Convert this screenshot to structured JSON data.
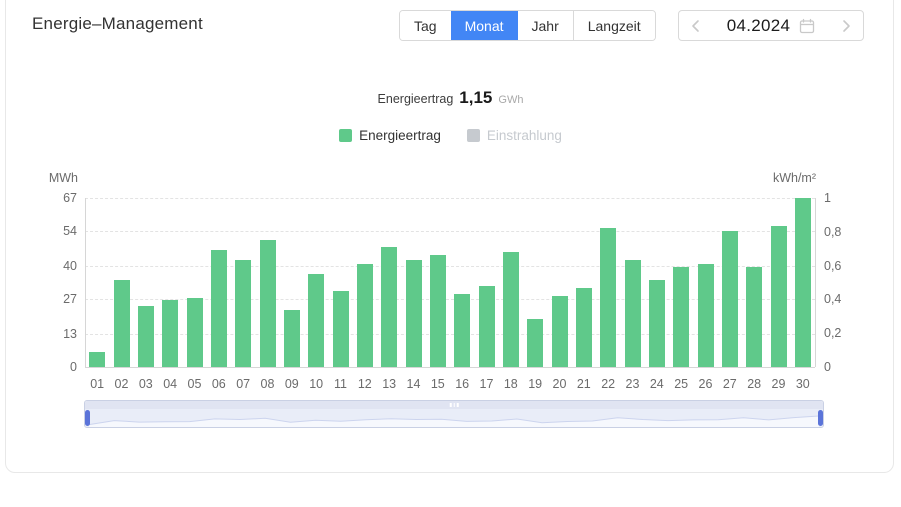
{
  "header": {
    "title": "Energie–Management",
    "view_tabs": {
      "options": [
        "Tag",
        "Monat",
        "Jahr",
        "Langzeit"
      ],
      "selected": "Monat"
    },
    "date_picker": {
      "value": "04.2024"
    }
  },
  "summary": {
    "label": "Energieertrag",
    "value": "1,15",
    "unit": "GWh"
  },
  "legend": [
    {
      "label": "Energieertrag",
      "color": "#5fc98a",
      "enabled": true
    },
    {
      "label": "Einstrahlung",
      "color": "#c6cacf",
      "enabled": false
    }
  ],
  "chart_data": {
    "type": "bar",
    "title": "",
    "categories": [
      "01",
      "02",
      "03",
      "04",
      "05",
      "06",
      "07",
      "08",
      "09",
      "10",
      "11",
      "12",
      "13",
      "14",
      "15",
      "16",
      "17",
      "18",
      "19",
      "20",
      "21",
      "22",
      "23",
      "24",
      "25",
      "26",
      "27",
      "28",
      "29",
      "30"
    ],
    "series": [
      {
        "name": "Energieertrag",
        "unit": "MWh",
        "color": "#5fc98a",
        "values": [
          6,
          34.5,
          24,
          26.5,
          27.5,
          46.5,
          42.5,
          50.5,
          22.5,
          37,
          30,
          41,
          47.5,
          42.5,
          44.5,
          29,
          32,
          45.5,
          19,
          28,
          31.5,
          55,
          42.5,
          34.5,
          39.5,
          41,
          54,
          39.5,
          56,
          67
        ]
      }
    ],
    "left_axis": {
      "unit": "MWh",
      "ticks": [
        "67",
        "54",
        "40",
        "27",
        "13",
        "0"
      ],
      "min": 0,
      "max": 67
    },
    "right_axis": {
      "unit": "kWh/m²",
      "ticks": [
        "1",
        "0,8",
        "0,6",
        "0,4",
        "0,2",
        "0"
      ],
      "min": 0,
      "max": 1
    },
    "grid": "horizontal dashed",
    "legend_position": "top",
    "datazoom": {
      "present": true,
      "range_start": "01",
      "range_end": "30"
    }
  },
  "colors": {
    "accent_blue": "#4286f5",
    "bar_green": "#5fc98a",
    "inactive_gray": "#c6cacf",
    "handle_blue": "#5b74d9",
    "axis_text": "#6b6b6b"
  }
}
